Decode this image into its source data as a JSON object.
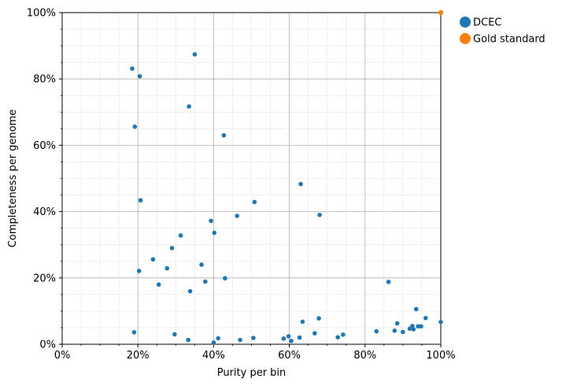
{
  "chart_data": {
    "type": "scatter",
    "xlabel": "Purity per bin",
    "ylabel": "Completeness per genome",
    "xlim": [
      0,
      1
    ],
    "ylim": [
      0,
      1
    ],
    "x_ticks": [
      "0%",
      "20%",
      "40%",
      "60%",
      "80%",
      "100%"
    ],
    "y_ticks": [
      "0%",
      "20%",
      "40%",
      "60%",
      "80%",
      "100%"
    ],
    "grid": true,
    "minor_grid": true,
    "legend_position": "outside-top-right",
    "series": [
      {
        "name": "DCEC",
        "color": "#1f77b4",
        "points": [
          [
            0.185,
            0.831
          ],
          [
            0.19,
            0.036
          ],
          [
            0.192,
            0.656
          ],
          [
            0.203,
            0.221
          ],
          [
            0.205,
            0.808
          ],
          [
            0.207,
            0.434
          ],
          [
            0.24,
            0.256
          ],
          [
            0.255,
            0.18
          ],
          [
            0.277,
            0.229
          ],
          [
            0.29,
            0.29
          ],
          [
            0.297,
            0.03
          ],
          [
            0.313,
            0.328
          ],
          [
            0.333,
            0.013
          ],
          [
            0.335,
            0.717
          ],
          [
            0.338,
            0.16
          ],
          [
            0.35,
            0.874
          ],
          [
            0.368,
            0.24
          ],
          [
            0.378,
            0.189
          ],
          [
            0.393,
            0.372
          ],
          [
            0.4,
            0.005
          ],
          [
            0.402,
            0.336
          ],
          [
            0.412,
            0.018
          ],
          [
            0.427,
            0.63
          ],
          [
            0.43,
            0.199
          ],
          [
            0.462,
            0.387
          ],
          [
            0.47,
            0.013
          ],
          [
            0.505,
            0.019
          ],
          [
            0.508,
            0.429
          ],
          [
            0.585,
            0.017
          ],
          [
            0.598,
            0.024
          ],
          [
            0.605,
            0.01
          ],
          [
            0.627,
            0.02
          ],
          [
            0.63,
            0.483
          ],
          [
            0.635,
            0.068
          ],
          [
            0.667,
            0.033
          ],
          [
            0.678,
            0.078
          ],
          [
            0.68,
            0.39
          ],
          [
            0.728,
            0.021
          ],
          [
            0.742,
            0.029
          ],
          [
            0.83,
            0.039
          ],
          [
            0.862,
            0.188
          ],
          [
            0.878,
            0.041
          ],
          [
            0.885,
            0.063
          ],
          [
            0.9,
            0.037
          ],
          [
            0.918,
            0.047
          ],
          [
            0.925,
            0.055
          ],
          [
            0.928,
            0.045
          ],
          [
            0.935,
            0.106
          ],
          [
            0.94,
            0.054
          ],
          [
            0.948,
            0.054
          ],
          [
            0.96,
            0.079
          ],
          [
            1.0,
            0.067
          ]
        ]
      },
      {
        "name": "Gold standard",
        "color": "#ff7f0e",
        "points": [
          [
            1.0,
            1.0
          ]
        ]
      }
    ]
  }
}
